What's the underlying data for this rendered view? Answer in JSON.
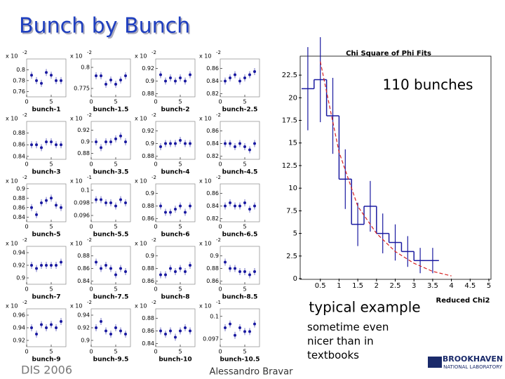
{
  "title": "Bunch by Bunch",
  "annotations": [
    "110 bunches",
    "typical example",
    "sometime even nicer than in textbooks"
  ],
  "footer": {
    "left": "DIS 2006",
    "center": "Alessandro Bravar",
    "logo": "BROOKHAVEN",
    "logo_sub": "NATIONAL LABORATORY"
  },
  "chart_data": [
    {
      "type": "histogram",
      "title": "Chi Square of Phi Fits",
      "xlabel": "Reduced Chi2",
      "color": "#1a1aa0",
      "bins": [
        0,
        0.333,
        0.667,
        1,
        1.333,
        1.667,
        2,
        2.333,
        2.667,
        3,
        3.333,
        3.667
      ],
      "values": [
        21,
        22,
        18,
        11,
        6,
        8,
        5,
        4,
        3,
        2,
        2
      ],
      "errors": [
        4.6,
        4.7,
        4.2,
        3.3,
        2.4,
        2.8,
        2.2,
        2,
        1.7,
        1.4,
        1.4
      ],
      "fit": {
        "color": "#d62020",
        "x": [
          0.5,
          1,
          1.5,
          2,
          2.5,
          3,
          3.5,
          4
        ],
        "values": [
          24,
          14,
          8,
          5,
          3,
          1.7,
          0.8,
          0.3
        ]
      },
      "xlim": [
        0,
        5
      ],
      "ylim": [
        0,
        24.6
      ],
      "xticks": [
        0.5,
        1,
        1.5,
        2,
        2.5,
        3,
        3.5,
        4,
        4.5,
        5
      ],
      "yticks": [
        0,
        2.5,
        5,
        7.5,
        10,
        12.5,
        15,
        17.5,
        20,
        22.5
      ]
    },
    {
      "type": "scatter",
      "label": "bunch-1",
      "scale": "x 10",
      "power": "-2",
      "x": [
        1,
        2,
        3,
        4,
        5,
        6,
        7
      ],
      "values": [
        0.79,
        0.78,
        0.775,
        0.795,
        0.79,
        0.78,
        0.78
      ],
      "xlim": [
        0,
        8
      ],
      "xticks": [
        0,
        5
      ],
      "ylim": [
        0.75,
        0.82
      ],
      "yticks": [
        0.76,
        0.78,
        0.8
      ]
    },
    {
      "type": "scatter",
      "label": "bunch-1.5",
      "scale": "x 10",
      "power": "-2",
      "x": [
        1,
        2,
        3,
        4,
        5,
        6,
        7
      ],
      "values": [
        0.79,
        0.79,
        0.78,
        0.785,
        0.78,
        0.785,
        0.79
      ],
      "xlim": [
        0,
        8
      ],
      "xticks": [
        0,
        5
      ],
      "ylim": [
        0.765,
        0.81
      ],
      "yticks": [
        0.775,
        0.8
      ]
    },
    {
      "type": "scatter",
      "label": "bunch-2",
      "scale": "x 10",
      "power": "-2",
      "x": [
        1,
        2,
        3,
        4,
        5,
        6,
        7
      ],
      "values": [
        0.91,
        0.9,
        0.905,
        0.9,
        0.905,
        0.9,
        0.91
      ],
      "xlim": [
        0,
        8
      ],
      "xticks": [
        0,
        5
      ],
      "ylim": [
        0.875,
        0.935
      ],
      "yticks": [
        0.88,
        0.9,
        0.92
      ]
    },
    {
      "type": "scatter",
      "label": "bunch-2.5",
      "scale": "x 10",
      "power": "-2",
      "x": [
        1,
        2,
        3,
        4,
        5,
        6,
        7
      ],
      "values": [
        0.84,
        0.845,
        0.85,
        0.84,
        0.845,
        0.85,
        0.855
      ],
      "xlim": [
        0,
        8
      ],
      "xticks": [
        0,
        5
      ],
      "ylim": [
        0.815,
        0.875
      ],
      "yticks": [
        0.82,
        0.84,
        0.86
      ]
    },
    {
      "type": "scatter",
      "label": "bunch-3",
      "scale": "x 10",
      "power": "-2",
      "x": [
        1,
        2,
        3,
        4,
        5,
        6,
        7
      ],
      "values": [
        0.86,
        0.86,
        0.855,
        0.865,
        0.865,
        0.86,
        0.86
      ],
      "xlim": [
        0,
        8
      ],
      "xticks": [
        0,
        5
      ],
      "ylim": [
        0.835,
        0.9
      ],
      "yticks": [
        0.84,
        0.86,
        0.88
      ]
    },
    {
      "type": "scatter",
      "label": "bunch-3.5",
      "scale": "x 10",
      "power": "-2",
      "x": [
        1,
        2,
        3,
        4,
        5,
        6,
        7
      ],
      "values": [
        0.9,
        0.89,
        0.9,
        0.9,
        0.905,
        0.91,
        0.9
      ],
      "xlim": [
        0,
        8
      ],
      "xticks": [
        0,
        5
      ],
      "ylim": [
        0.87,
        0.935
      ],
      "yticks": [
        0.88,
        0.9,
        0.92
      ]
    },
    {
      "type": "scatter",
      "label": "bunch-4",
      "scale": "x 10",
      "power": "-2",
      "x": [
        1,
        2,
        3,
        4,
        5,
        6,
        7
      ],
      "values": [
        0.895,
        0.9,
        0.9,
        0.9,
        0.905,
        0.9,
        0.9
      ],
      "xlim": [
        0,
        8
      ],
      "xticks": [
        0,
        5
      ],
      "ylim": [
        0.875,
        0.935
      ],
      "yticks": [
        0.88,
        0.9,
        0.92
      ]
    },
    {
      "type": "scatter",
      "label": "bunch-4.5",
      "scale": "x 10",
      "power": "-2",
      "x": [
        1,
        2,
        3,
        4,
        5,
        6,
        7
      ],
      "values": [
        0.84,
        0.84,
        0.835,
        0.84,
        0.835,
        0.83,
        0.84
      ],
      "xlim": [
        0,
        8
      ],
      "xticks": [
        0,
        5
      ],
      "ylim": [
        0.815,
        0.875
      ],
      "yticks": [
        0.82,
        0.84,
        0.86
      ]
    },
    {
      "type": "scatter",
      "label": "bunch-5",
      "scale": "x 10",
      "power": "-2",
      "x": [
        1,
        2,
        3,
        4,
        5,
        6,
        7
      ],
      "values": [
        0.86,
        0.845,
        0.87,
        0.875,
        0.88,
        0.865,
        0.86
      ],
      "xlim": [
        0,
        8
      ],
      "xticks": [
        0,
        5
      ],
      "ylim": [
        0.83,
        0.91
      ],
      "yticks": [
        0.84,
        0.86,
        0.88,
        0.9
      ]
    },
    {
      "type": "scatter",
      "label": "bunch-5.5",
      "scale": "x 10",
      "power": "-1",
      "x": [
        1,
        2,
        3,
        4,
        5,
        6,
        7
      ],
      "values": [
        0.0985,
        0.0985,
        0.098,
        0.098,
        0.0975,
        0.0985,
        0.098
      ],
      "xlim": [
        0,
        8
      ],
      "xticks": [
        0,
        5
      ],
      "ylim": [
        0.095,
        0.101
      ],
      "yticks": [
        0.096,
        0.098,
        0.1
      ]
    },
    {
      "type": "scatter",
      "label": "bunch-6",
      "scale": "x 10",
      "power": "-2",
      "x": [
        1,
        2,
        3,
        4,
        5,
        6,
        7
      ],
      "values": [
        0.88,
        0.87,
        0.87,
        0.875,
        0.88,
        0.87,
        0.88
      ],
      "xlim": [
        0,
        8
      ],
      "xticks": [
        0,
        5
      ],
      "ylim": [
        0.855,
        0.915
      ],
      "yticks": [
        0.86,
        0.88,
        0.9
      ]
    },
    {
      "type": "scatter",
      "label": "bunch-6.5",
      "scale": "x 10",
      "power": "-2",
      "x": [
        1,
        2,
        3,
        4,
        5,
        6,
        7
      ],
      "values": [
        0.84,
        0.845,
        0.84,
        0.84,
        0.845,
        0.835,
        0.84
      ],
      "xlim": [
        0,
        8
      ],
      "xticks": [
        0,
        5
      ],
      "ylim": [
        0.815,
        0.875
      ],
      "yticks": [
        0.82,
        0.84,
        0.86
      ]
    },
    {
      "type": "scatter",
      "label": "bunch-7",
      "scale": "x 10",
      "power": "-2",
      "x": [
        1,
        2,
        3,
        4,
        5,
        6,
        7
      ],
      "values": [
        0.92,
        0.915,
        0.92,
        0.92,
        0.92,
        0.92,
        0.925
      ],
      "xlim": [
        0,
        8
      ],
      "xticks": [
        0,
        5
      ],
      "ylim": [
        0.89,
        0.95
      ],
      "yticks": [
        0.9,
        0.92,
        0.94
      ]
    },
    {
      "type": "scatter",
      "label": "bunch-7.5",
      "scale": "x 10",
      "power": "-2",
      "x": [
        1,
        2,
        3,
        4,
        5,
        6,
        7
      ],
      "values": [
        0.87,
        0.86,
        0.865,
        0.86,
        0.85,
        0.86,
        0.855
      ],
      "xlim": [
        0,
        8
      ],
      "xticks": [
        0,
        5
      ],
      "ylim": [
        0.835,
        0.895
      ],
      "yticks": [
        0.84,
        0.86,
        0.88
      ]
    },
    {
      "type": "scatter",
      "label": "bunch-8",
      "scale": "x 10",
      "power": "-2",
      "x": [
        1,
        2,
        3,
        4,
        5,
        6,
        7
      ],
      "values": [
        0.87,
        0.87,
        0.88,
        0.875,
        0.88,
        0.875,
        0.885
      ],
      "xlim": [
        0,
        8
      ],
      "xticks": [
        0,
        5
      ],
      "ylim": [
        0.855,
        0.915
      ],
      "yticks": [
        0.86,
        0.88,
        0.9
      ]
    },
    {
      "type": "scatter",
      "label": "bunch-8.5",
      "scale": "x 10",
      "power": "-2",
      "x": [
        1,
        2,
        3,
        4,
        5,
        6,
        7
      ],
      "values": [
        0.89,
        0.88,
        0.88,
        0.875,
        0.875,
        0.87,
        0.875
      ],
      "xlim": [
        0,
        8
      ],
      "xticks": [
        0,
        5
      ],
      "ylim": [
        0.855,
        0.915
      ],
      "yticks": [
        0.86,
        0.88,
        0.9
      ]
    },
    {
      "type": "scatter",
      "label": "bunch-9",
      "scale": "x 10",
      "power": "-2",
      "x": [
        1,
        2,
        3,
        4,
        5,
        6,
        7
      ],
      "values": [
        0.94,
        0.93,
        0.945,
        0.94,
        0.945,
        0.94,
        0.95
      ],
      "xlim": [
        0,
        8
      ],
      "xticks": [
        0,
        5
      ],
      "ylim": [
        0.91,
        0.97
      ],
      "yticks": [
        0.92,
        0.94,
        0.96
      ]
    },
    {
      "type": "scatter",
      "label": "bunch-9.5",
      "scale": "x 10",
      "power": "-2",
      "x": [
        1,
        2,
        3,
        4,
        5,
        6,
        7
      ],
      "values": [
        0.92,
        0.93,
        0.915,
        0.91,
        0.92,
        0.915,
        0.91
      ],
      "xlim": [
        0,
        8
      ],
      "xticks": [
        0,
        5
      ],
      "ylim": [
        0.89,
        0.95
      ],
      "yticks": [
        0.9,
        0.92,
        0.94
      ]
    },
    {
      "type": "scatter",
      "label": "bunch-10",
      "scale": "x 10",
      "power": "-2",
      "x": [
        1,
        2,
        3,
        4,
        5,
        6,
        7
      ],
      "values": [
        0.86,
        0.855,
        0.86,
        0.85,
        0.86,
        0.865,
        0.86
      ],
      "xlim": [
        0,
        8
      ],
      "xticks": [
        0,
        5
      ],
      "ylim": [
        0.835,
        0.895
      ],
      "yticks": [
        0.84,
        0.86,
        0.88
      ]
    },
    {
      "type": "scatter",
      "label": "bunch-10.5",
      "scale": "x 10",
      "power": "-1",
      "x": [
        1,
        2,
        3,
        4,
        5,
        6,
        7
      ],
      "values": [
        0.0985,
        0.099,
        0.0975,
        0.0985,
        0.098,
        0.098,
        0.099
      ],
      "xlim": [
        0,
        8
      ],
      "xticks": [
        0,
        5
      ],
      "ylim": [
        0.096,
        0.101
      ],
      "yticks": [
        0.097,
        0.1
      ]
    }
  ]
}
